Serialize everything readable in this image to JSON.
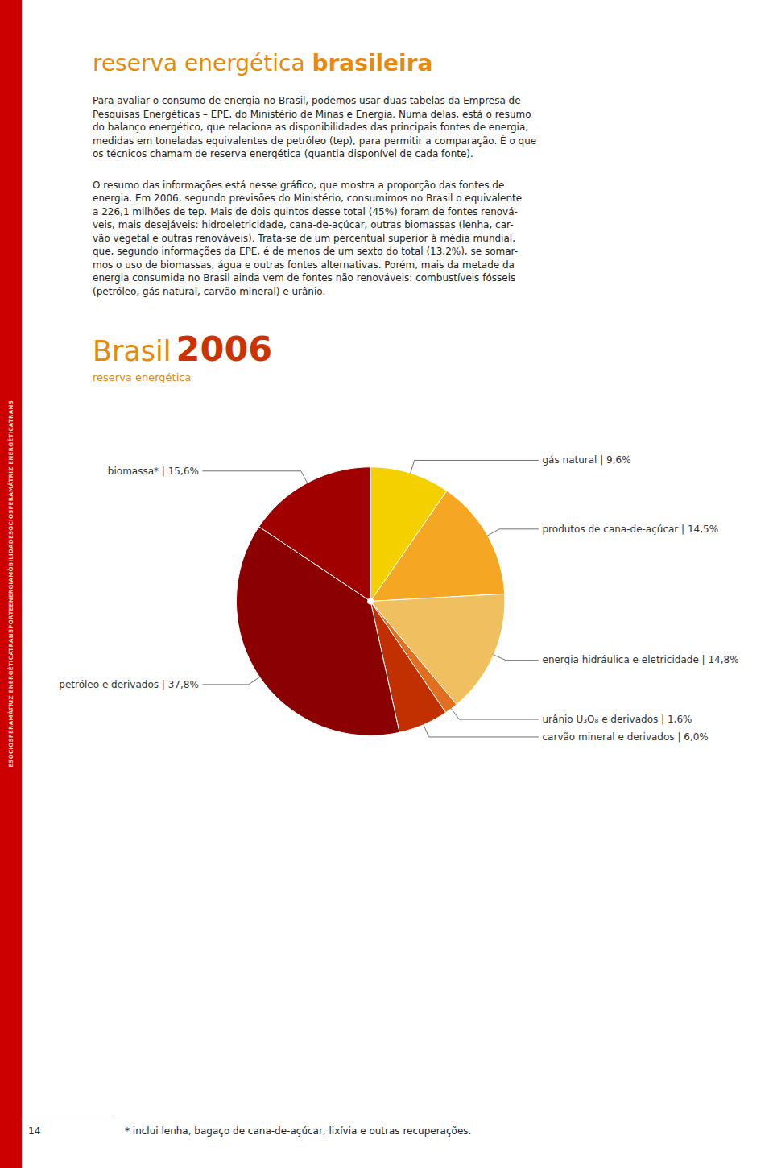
{
  "chart_data": {
    "type": "pie",
    "title": "reserva energética brasileira",
    "subtitle": "reserva energética",
    "annotations": {
      "heading": [
        "Brasil",
        "2006"
      ],
      "paragraphs": [
        [
          "Para avaliar o consumo de energia no Brasil, podemos usar duas tabelas da Empresa de",
          "Pesquisas Energéticas – EPE, do Ministério de Minas e Energia. Numa delas, está o resumo",
          "do balanço energético, que relaciona as disponibilidades das principais fontes de energia,",
          "medidas em toneladas equivalentes de petróleo (tep), para permitir a comparação. É o que",
          "os técnicos chamam de reserva energética (quantia disponível de cada fonte)."
        ],
        [
          "O resumo das informações está nesse gráfico, que mostra a proporção das fontes de",
          "energia. Em 2006, segundo previsões do Ministério, consumimos no Brasil o equivalente",
          "a 226,1 milhões de tep. Mais de dois quintos desse total (45%) foram de fontes renová-",
          "veis, mais desejáveis: hidroeletricidade, cana-de-açúcar, outras biomassas (lenha, car-",
          "vão vegetal e outras renováveis). Trata-se de um percentual superior à média mundial,",
          "que, segundo informações da EPE, é de menos de um sexto do total (13,2%), se somar-",
          "mos o uso de biomassas, água e outras fontes alternativas. Porém, mais da metade da",
          "energia consumida no Brasil ainda vem de fontes não renováveis: combustíveis fósseis",
          "(petróleo, gás natural, carvão mineral) e urânio."
        ]
      ],
      "footnote": "* inclui lenha, bagaço de cana-de-açúcar, lixívia e outras recuperações.",
      "page_number": "14",
      "side_text": "ESOCIOSFERAMÁTRIZ ENERGÉTICATRANSPORTEENERGIAMÓBILIDADESOCIOSFERAMÁTRIZ ENERGÉTICATRANS"
    },
    "categories": [
      "gás natural | 9,6%",
      "produtos de cana-de-açúcar | 14,5%",
      "energia hidráulica e eletricidade | 14,8%",
      "urânio U₃O₈ e derivados | 1,6%",
      "carvão mineral e derivados | 6,0%",
      "petróleo e derivados | 37,8%",
      "biomassa* | 15,6%"
    ],
    "values": [
      9.6,
      14.5,
      14.8,
      1.6,
      6.0,
      37.8,
      15.6
    ],
    "colors": [
      "#F5D000",
      "#F5A623",
      "#F0C060",
      "#E07020",
      "#C03000",
      "#8B0000",
      "#A00000"
    ]
  }
}
